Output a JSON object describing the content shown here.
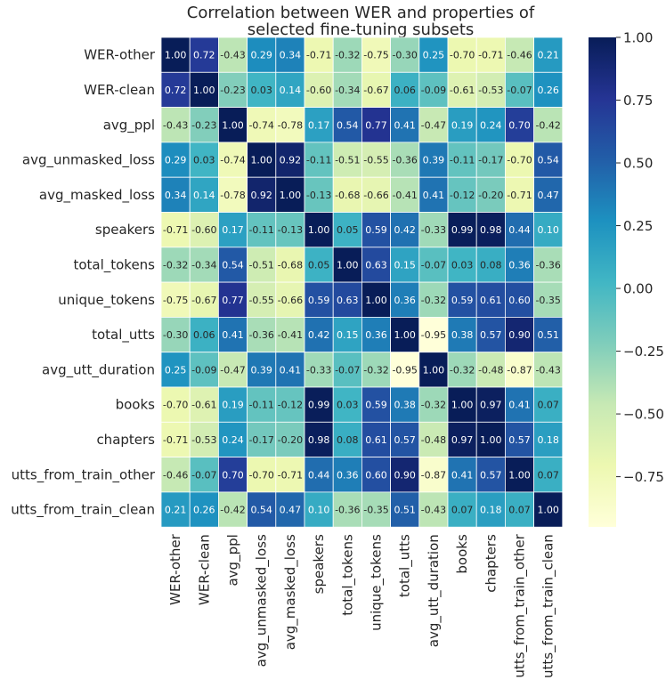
{
  "chart_data": {
    "type": "heatmap",
    "title_lines": [
      "Correlation between WER and properties of",
      "selected fine-tuning subsets"
    ],
    "labels": [
      "WER-other",
      "WER-clean",
      "avg_ppl",
      "avg_unmasked_loss",
      "avg_masked_loss",
      "speakers",
      "total_tokens",
      "unique_tokens",
      "total_utts",
      "avg_utt_duration",
      "books",
      "chapters",
      "utts_from_train_other",
      "utts_from_train_clean"
    ],
    "matrix": [
      [
        1.0,
        0.72,
        -0.43,
        0.29,
        0.34,
        -0.71,
        -0.32,
        -0.75,
        -0.3,
        0.25,
        -0.7,
        -0.71,
        -0.46,
        0.21
      ],
      [
        0.72,
        1.0,
        -0.23,
        0.03,
        0.14,
        -0.6,
        -0.34,
        -0.67,
        0.06,
        -0.09,
        -0.61,
        -0.53,
        -0.07,
        0.26
      ],
      [
        -0.43,
        -0.23,
        1.0,
        -0.74,
        -0.78,
        0.17,
        0.54,
        0.77,
        0.41,
        -0.47,
        0.19,
        0.24,
        0.7,
        -0.42
      ],
      [
        0.29,
        0.03,
        -0.74,
        1.0,
        0.92,
        -0.11,
        -0.51,
        -0.55,
        -0.36,
        0.39,
        -0.11,
        -0.17,
        -0.7,
        0.54
      ],
      [
        0.34,
        0.14,
        -0.78,
        0.92,
        1.0,
        -0.13,
        -0.68,
        -0.66,
        -0.41,
        0.41,
        -0.12,
        -0.2,
        -0.71,
        0.47
      ],
      [
        -0.71,
        -0.6,
        0.17,
        -0.11,
        -0.13,
        1.0,
        0.05,
        0.59,
        0.42,
        -0.33,
        0.99,
        0.98,
        0.44,
        0.1
      ],
      [
        -0.32,
        -0.34,
        0.54,
        -0.51,
        -0.68,
        0.05,
        1.0,
        0.63,
        0.15,
        -0.07,
        0.03,
        0.08,
        0.36,
        -0.36
      ],
      [
        -0.75,
        -0.67,
        0.77,
        -0.55,
        -0.66,
        0.59,
        0.63,
        1.0,
        0.36,
        -0.32,
        0.59,
        0.61,
        0.6,
        -0.35
      ],
      [
        -0.3,
        0.06,
        0.41,
        -0.36,
        -0.41,
        0.42,
        0.15,
        0.36,
        1.0,
        -0.95,
        0.38,
        0.57,
        0.9,
        0.51
      ],
      [
        0.25,
        -0.09,
        -0.47,
        0.39,
        0.41,
        -0.33,
        -0.07,
        -0.32,
        -0.95,
        1.0,
        -0.32,
        -0.48,
        -0.87,
        -0.43
      ],
      [
        -0.7,
        -0.61,
        0.19,
        -0.11,
        -0.12,
        0.99,
        0.03,
        0.59,
        0.38,
        -0.32,
        1.0,
        0.97,
        0.41,
        0.07
      ],
      [
        -0.71,
        -0.53,
        0.24,
        -0.17,
        -0.2,
        0.98,
        0.08,
        0.61,
        0.57,
        -0.48,
        0.97,
        1.0,
        0.57,
        0.18
      ],
      [
        -0.46,
        -0.07,
        0.7,
        -0.7,
        -0.71,
        0.44,
        0.36,
        0.6,
        0.9,
        -0.87,
        0.41,
        0.57,
        1.0,
        0.07
      ],
      [
        0.21,
        0.26,
        -0.42,
        0.54,
        0.47,
        0.1,
        -0.36,
        -0.35,
        0.51,
        -0.43,
        0.07,
        0.18,
        0.07,
        1.0
      ]
    ],
    "colormap": "YlGnBu",
    "colormap_stops": [
      "#ffffd9",
      "#edf8b1",
      "#c7e9b4",
      "#7fcdbb",
      "#41b6c4",
      "#1d91c0",
      "#225ea8",
      "#253494",
      "#081d58"
    ],
    "value_range": [
      -0.95,
      1.0
    ],
    "colorbar_ticks": [
      1.0,
      0.75,
      0.5,
      0.25,
      0.0,
      -0.25,
      -0.5,
      -0.75
    ],
    "colorbar_tick_labels": [
      "1.00",
      "0.75",
      "0.50",
      "0.25",
      "0.00",
      "−0.25",
      "−0.50",
      "−0.75"
    ],
    "cell_border_color": "#ffffff"
  }
}
